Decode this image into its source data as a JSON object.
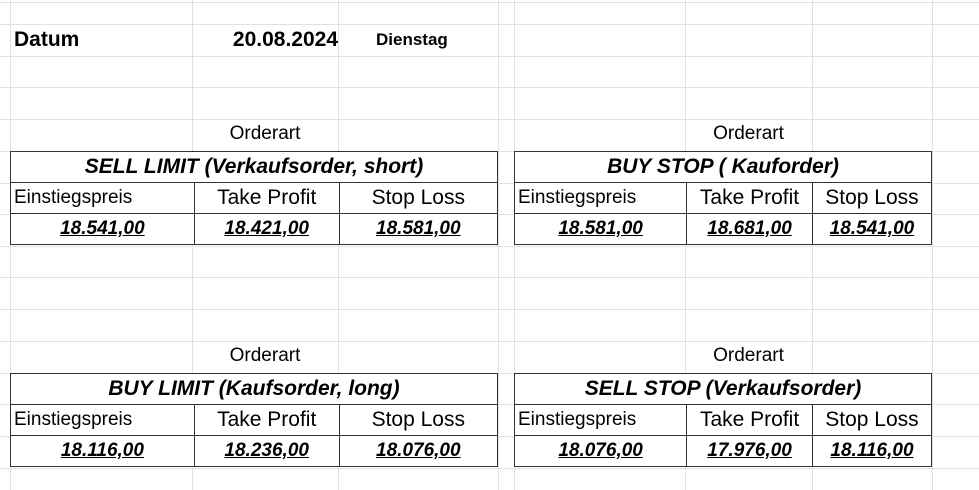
{
  "header": {
    "label": "Datum",
    "date": "20.08.2024",
    "weekday": "Dienstag"
  },
  "tables": [
    {
      "caption": "Orderart",
      "title": "SELL LIMIT (Verkaufsorder, short)",
      "headers": [
        "Einstiegspreis",
        "Take Profit",
        "Stop Loss"
      ],
      "values": [
        "18.541,00",
        "18.421,00",
        "18.581,00"
      ]
    },
    {
      "caption": "Orderart",
      "title": "BUY STOP ( Kauforder)",
      "headers": [
        "Einstiegspreis",
        "Take Profit",
        "Stop Loss"
      ],
      "values": [
        "18.581,00",
        "18.681,00",
        "18.541,00"
      ]
    },
    {
      "caption": "Orderart",
      "title": "BUY LIMIT (Kaufsorder, long)",
      "headers": [
        "Einstiegspreis",
        "Take Profit",
        "Stop Loss"
      ],
      "values": [
        "18.116,00",
        "18.236,00",
        "18.076,00"
      ]
    },
    {
      "caption": "Orderart",
      "title": "SELL STOP (Verkaufsorder)",
      "headers": [
        "Einstiegspreis",
        "Take Profit",
        "Stop Loss"
      ],
      "values": [
        "18.076,00",
        "17.976,00",
        "18.116,00"
      ]
    }
  ]
}
